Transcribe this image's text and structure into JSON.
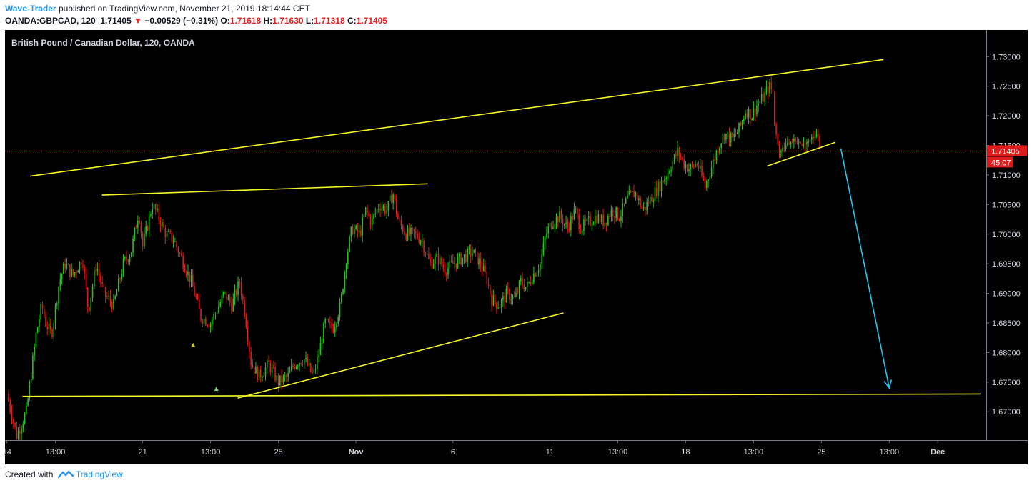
{
  "header": {
    "author": "Wave-Trader",
    "published_text": "published on TradingView.com, November 21, 2019 18:14:44 CET",
    "symbol": "OANDA:GBPCAD, 120",
    "last": "1.71405",
    "change_arrow": "▼",
    "change": "−0.00529 (−0.31%)",
    "open_label": "O:",
    "open": "1.71618",
    "high_label": "H:",
    "high": "1.71630",
    "low_label": "L:",
    "low": "1.71318",
    "close_label": "C:",
    "close": "1.71405"
  },
  "chart_title": "British Pound / Canadian Dollar, 120, OANDA",
  "footer": {
    "created_text": "Created with",
    "brand": "TradingView"
  },
  "colors": {
    "background": "#000000",
    "up": "#26c21b",
    "down": "#e01b1b",
    "trendline": "#f5f52a",
    "arrow": "#1ec8f0",
    "price_tag": "#e01b1b",
    "text": "#d1d4dc"
  },
  "chart_data": {
    "type": "candlestick",
    "title": "British Pound / Canadian Dollar, 120, OANDA",
    "y_ticks": [
      "1.73000",
      "1.72500",
      "1.72000",
      "1.71500",
      "1.71000",
      "1.70500",
      "1.70000",
      "1.69500",
      "1.69000",
      "1.68500",
      "1.68000",
      "1.67500",
      "1.67000"
    ],
    "ylim": [
      1.6652,
      1.7345
    ],
    "x_ticks": [
      {
        "label": "14",
        "day": 14
      },
      {
        "label": "13:00",
        "day": 16.5
      },
      {
        "label": "21",
        "day": 21
      },
      {
        "label": "13:00",
        "day": 24.5
      },
      {
        "label": "28",
        "day": 28
      },
      {
        "label": "Nov",
        "day": 32
      },
      {
        "label": "6",
        "day": 37
      },
      {
        "label": "11",
        "day": 42
      },
      {
        "label": "13:00",
        "day": 45.5
      },
      {
        "label": "18",
        "day": 49
      },
      {
        "label": "13:00",
        "day": 52.5
      },
      {
        "label": "25",
        "day": 56
      },
      {
        "label": "13:00",
        "day": 59.5
      },
      {
        "label": "Dec",
        "day": 62
      }
    ],
    "xlim": [
      13.9,
      64.5
    ],
    "last_price": {
      "value": 1.71405,
      "label": "1.71405",
      "countdown": "45:07"
    },
    "price_path": [
      [
        14.0,
        1.673
      ],
      [
        14.5,
        1.666
      ],
      [
        15.0,
        1.67
      ],
      [
        15.5,
        1.683
      ],
      [
        15.8,
        1.688
      ],
      [
        16.0,
        1.685
      ],
      [
        16.3,
        1.683
      ],
      [
        16.7,
        1.692
      ],
      [
        17.0,
        1.695
      ],
      [
        17.4,
        1.693
      ],
      [
        17.9,
        1.696
      ],
      [
        18.2,
        1.687
      ],
      [
        18.6,
        1.695
      ],
      [
        19.0,
        1.69
      ],
      [
        19.5,
        1.688
      ],
      [
        20.0,
        1.695
      ],
      [
        20.4,
        1.697
      ],
      [
        20.8,
        1.704
      ],
      [
        21.0,
        1.698
      ],
      [
        21.5,
        1.705
      ],
      [
        21.8,
        1.703
      ],
      [
        22.2,
        1.7
      ],
      [
        22.6,
        1.699
      ],
      [
        23.0,
        1.696
      ],
      [
        23.5,
        1.692
      ],
      [
        24.0,
        1.686
      ],
      [
        24.5,
        1.685
      ],
      [
        24.8,
        1.687
      ],
      [
        25.2,
        1.69
      ],
      [
        25.6,
        1.688
      ],
      [
        26.0,
        1.692
      ],
      [
        26.3,
        1.686
      ],
      [
        26.6,
        1.678
      ],
      [
        27.0,
        1.676
      ],
      [
        27.5,
        1.678
      ],
      [
        28.0,
        1.675
      ],
      [
        28.5,
        1.676
      ],
      [
        28.8,
        1.678
      ],
      [
        29.3,
        1.679
      ],
      [
        29.8,
        1.676
      ],
      [
        30.1,
        1.68
      ],
      [
        30.4,
        1.685
      ],
      [
        30.8,
        1.684
      ],
      [
        31.2,
        1.688
      ],
      [
        31.5,
        1.696
      ],
      [
        31.8,
        1.701
      ],
      [
        32.2,
        1.7
      ],
      [
        32.5,
        1.704
      ],
      [
        32.8,
        1.702
      ],
      [
        33.2,
        1.705
      ],
      [
        33.6,
        1.704
      ],
      [
        33.9,
        1.707
      ],
      [
        34.2,
        1.702
      ],
      [
        34.6,
        1.7
      ],
      [
        35.0,
        1.7
      ],
      [
        35.4,
        1.699
      ],
      [
        35.8,
        1.695
      ],
      [
        36.2,
        1.696
      ],
      [
        36.6,
        1.694
      ],
      [
        37.0,
        1.695
      ],
      [
        37.5,
        1.696
      ],
      [
        38.0,
        1.697
      ],
      [
        38.4,
        1.695
      ],
      [
        38.7,
        1.693
      ],
      [
        39.0,
        1.689
      ],
      [
        39.4,
        1.688
      ],
      [
        39.8,
        1.69
      ],
      [
        40.2,
        1.689
      ],
      [
        40.5,
        1.692
      ],
      [
        40.8,
        1.691
      ],
      [
        41.1,
        1.693
      ],
      [
        41.5,
        1.695
      ],
      [
        41.8,
        1.7
      ],
      [
        42.1,
        1.702
      ],
      [
        42.5,
        1.703
      ],
      [
        42.9,
        1.701
      ],
      [
        43.3,
        1.704
      ],
      [
        43.6,
        1.701
      ],
      [
        44.0,
        1.702
      ],
      [
        44.4,
        1.703
      ],
      [
        44.8,
        1.702
      ],
      [
        45.2,
        1.704
      ],
      [
        45.6,
        1.703
      ],
      [
        46.0,
        1.706
      ],
      [
        46.4,
        1.707
      ],
      [
        46.8,
        1.704
      ],
      [
        47.2,
        1.706
      ],
      [
        47.6,
        1.708
      ],
      [
        48.0,
        1.71
      ],
      [
        48.3,
        1.712
      ],
      [
        48.6,
        1.714
      ],
      [
        48.9,
        1.712
      ],
      [
        49.2,
        1.711
      ],
      [
        49.6,
        1.712
      ],
      [
        50.0,
        1.708
      ],
      [
        50.4,
        1.712
      ],
      [
        50.7,
        1.715
      ],
      [
        51.0,
        1.717
      ],
      [
        51.4,
        1.716
      ],
      [
        51.8,
        1.718
      ],
      [
        52.1,
        1.721
      ],
      [
        52.4,
        1.72
      ],
      [
        52.7,
        1.722
      ],
      [
        53.0,
        1.723
      ],
      [
        53.3,
        1.725
      ],
      [
        53.5,
        1.724
      ],
      [
        53.6,
        1.718
      ],
      [
        53.8,
        1.714
      ],
      [
        54.2,
        1.715
      ],
      [
        54.6,
        1.716
      ],
      [
        55.0,
        1.715
      ],
      [
        55.4,
        1.716
      ],
      [
        55.8,
        1.717
      ],
      [
        55.95,
        1.71405
      ]
    ],
    "annotations": {
      "trendlines": [
        {
          "from": [
            15.2,
            1.7098
          ],
          "to": [
            59.2,
            1.7295
          ]
        },
        {
          "from": [
            18.9,
            1.7066
          ],
          "to": [
            35.7,
            1.7085
          ]
        },
        {
          "from": [
            14.8,
            1.6726
          ],
          "to": [
            64.2,
            1.673
          ]
        },
        {
          "from": [
            25.9,
            1.6723
          ],
          "to": [
            42.7,
            1.6867
          ]
        },
        {
          "from": [
            53.2,
            1.7115
          ],
          "to": [
            56.7,
            1.7155
          ]
        }
      ],
      "arrow": {
        "from": [
          57.0,
          1.7145
        ],
        "to": [
          59.5,
          1.674
        ]
      },
      "markers": [
        {
          "day": 23.6,
          "price": 1.6813
        },
        {
          "day": 24.8,
          "price": 1.6739
        }
      ]
    }
  }
}
